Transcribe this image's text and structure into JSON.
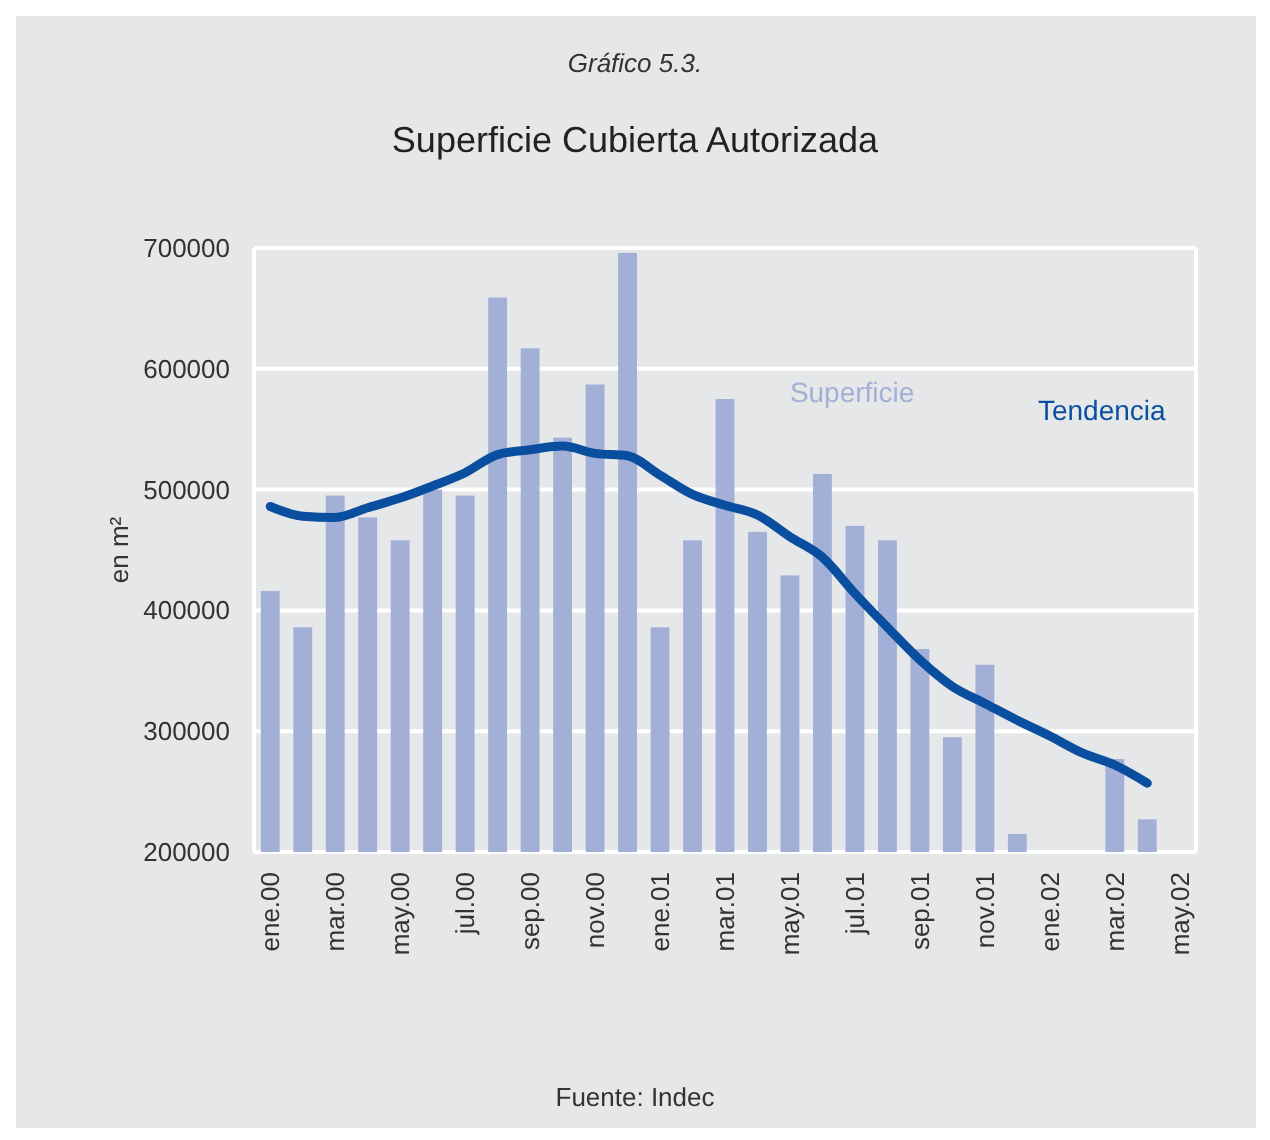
{
  "chart_data": {
    "type": "bar",
    "title": "Superficie Cubierta Autorizada",
    "subtitle": "Gráfico 5.3.",
    "ylabel": "en m²",
    "annotations": [
      "Fuente: Indec"
    ],
    "categories": [
      "ene.00",
      null,
      "mar.00",
      null,
      "may.00",
      null,
      "jul.00",
      null,
      "sep.00",
      null,
      "nov.00",
      null,
      "ene.01",
      null,
      "mar.01",
      null,
      "may.01",
      null,
      "jul.01",
      null,
      "sep.01",
      null,
      "nov.01",
      null,
      "ene.02",
      null,
      "mar.02",
      null,
      "may.02"
    ],
    "series": [
      {
        "name": "Superficie",
        "color": "#a2afd7",
        "values": [
          416000,
          386000,
          495000,
          477000,
          458000,
          500000,
          495000,
          659000,
          617000,
          543000,
          587000,
          696000,
          386000,
          458000,
          575000,
          465000,
          429000,
          513000,
          470000,
          458000,
          368000,
          295000,
          355000,
          215000,
          null,
          null,
          277000,
          227000,
          null
        ]
      },
      {
        "name": "Tendencia",
        "type": "line",
        "color": "#0a4f9f",
        "values": [
          486000,
          478000,
          477000,
          485000,
          493000,
          503000,
          514000,
          529000,
          533000,
          536000,
          530000,
          528000,
          512000,
          496000,
          487000,
          479000,
          461000,
          444000,
          414000,
          386000,
          359000,
          337000,
          323000,
          309000,
          296000,
          282000,
          272000,
          257000,
          null
        ]
      }
    ],
    "ylim": [
      200000,
      700000
    ],
    "yticks": [
      200000,
      300000,
      400000,
      500000,
      600000,
      700000
    ],
    "grid": "y"
  }
}
